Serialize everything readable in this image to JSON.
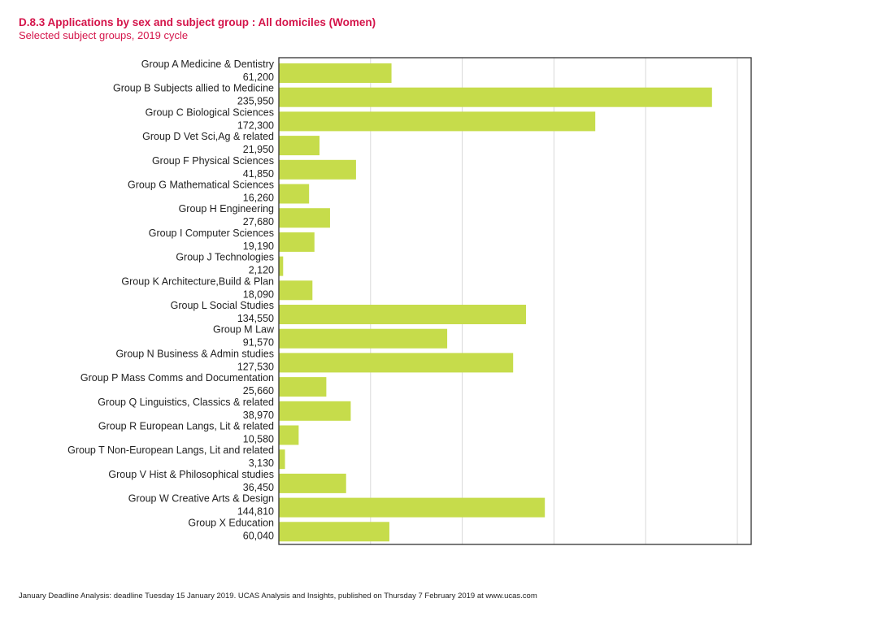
{
  "chart_data": {
    "type": "bar",
    "orientation": "horizontal",
    "title": "D.8.3 Applications by sex and subject group : All domiciles (Women)",
    "subtitle": "Selected subject groups, 2019 cycle",
    "xlim": [
      0,
      250000
    ],
    "grid": true,
    "bar_color": "#c6dc4b",
    "title_color": "#d4144a",
    "categories": [
      "Group A Medicine & Dentistry",
      "Group B Subjects allied to Medicine",
      "Group C Biological Sciences",
      "Group D Vet Sci,Ag & related",
      "Group F Physical Sciences",
      "Group G Mathematical Sciences",
      "Group H Engineering",
      "Group I Computer Sciences",
      "Group J Technologies",
      "Group K Architecture,Build & Plan",
      "Group L Social Studies",
      "Group M Law",
      "Group N Business & Admin studies",
      "Group P Mass Comms and Documentation",
      "Group Q Linguistics, Classics & related",
      "Group R European Langs, Lit & related",
      "Group T Non-European Langs, Lit and related",
      "Group V Hist & Philosophical studies",
      "Group W Creative Arts & Design",
      "Group X Education"
    ],
    "values": [
      61200,
      235950,
      172300,
      21950,
      41850,
      16260,
      27680,
      19190,
      2120,
      18090,
      134550,
      91570,
      127530,
      25660,
      38970,
      10580,
      3130,
      36450,
      144810,
      60040
    ],
    "value_labels": [
      "61,200",
      "235,950",
      "172,300",
      "21,950",
      "41,850",
      "16,260",
      "27,680",
      "19,190",
      "2,120",
      "18,090",
      "134,550",
      "91,570",
      "127,530",
      "25,660",
      "38,970",
      "10,580",
      "3,130",
      "36,450",
      "144,810",
      "60,040"
    ]
  },
  "footnote": "January Deadline Analysis: deadline Tuesday 15 January 2019. UCAS Analysis and Insights, published on Thursday 7 February 2019 at www.ucas.com"
}
